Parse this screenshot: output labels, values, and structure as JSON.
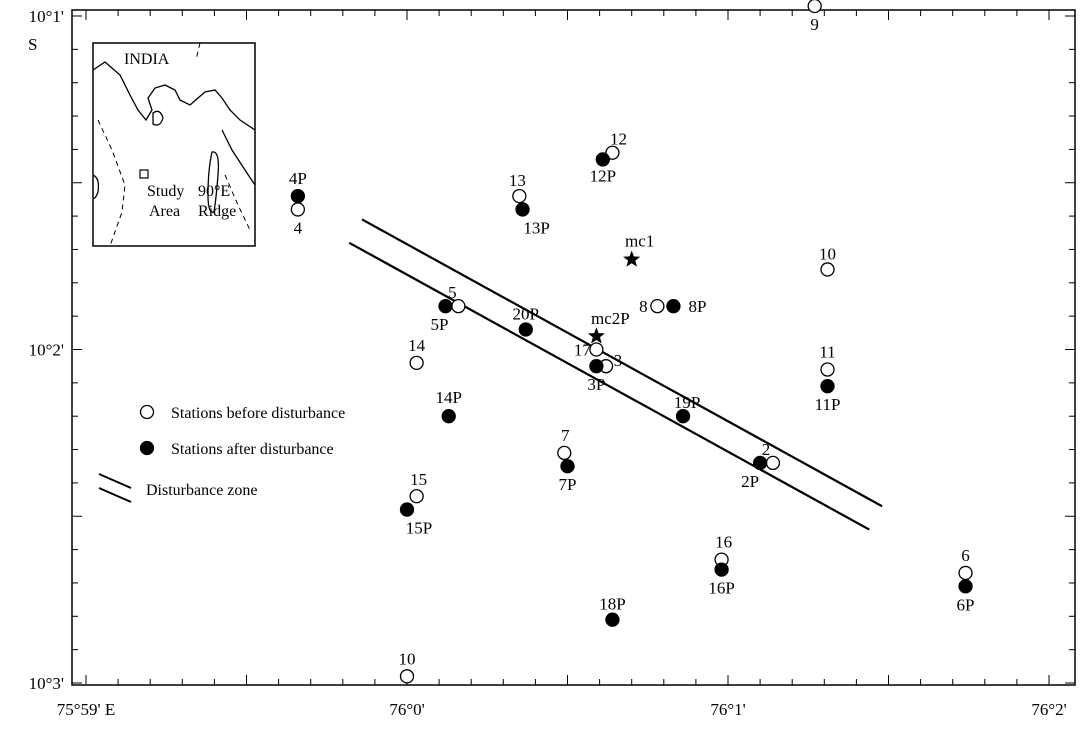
{
  "axes": {
    "x_ticks": [
      {
        "value": -1,
        "label": "75°59' E"
      },
      {
        "value": 0,
        "label": "76°0'"
      },
      {
        "value": 1,
        "label": "76°1'"
      },
      {
        "value": 2,
        "label": "76°2'"
      }
    ],
    "y_ticks": [
      {
        "value": 1,
        "label": "10°1'"
      },
      {
        "value": 2,
        "label": "10°2'"
      },
      {
        "value": 3,
        "label": "10°3'"
      }
    ],
    "y_hemisphere": "S",
    "x_range_minutes": [
      -1.1,
      2.1
    ],
    "y_range_minutes": [
      0.93,
      3.0
    ]
  },
  "inset": {
    "country_label": "INDIA",
    "study_area_label_1": "Study",
    "study_area_label_2": "Area",
    "ridge_label_1": "90°E",
    "ridge_label_2": "Ridge"
  },
  "legend": {
    "before_label": "Stations before disturbance",
    "after_label": "Stations after disturbance",
    "zone_label": "Disturbance zone"
  },
  "stations_before": [
    {
      "label": "9",
      "lon": 1.27,
      "lat": 0.97
    },
    {
      "label": "12",
      "lon": 0.64,
      "lat": 1.41
    },
    {
      "label": "13",
      "lon": 0.35,
      "lat": 1.54
    },
    {
      "label": "4",
      "lon": -0.34,
      "lat": 1.58
    },
    {
      "label": "10",
      "lon": 1.31,
      "lat": 1.76
    },
    {
      "label": "5",
      "lon": 0.16,
      "lat": 1.87
    },
    {
      "label": "8",
      "lon": 0.78,
      "lat": 1.87
    },
    {
      "label": "17",
      "lon": 0.59,
      "lat": 2.0
    },
    {
      "label": "3",
      "lon": 0.62,
      "lat": 2.05
    },
    {
      "label": "14",
      "lon": 0.03,
      "lat": 2.04
    },
    {
      "label": "11",
      "lon": 1.31,
      "lat": 2.06
    },
    {
      "label": "7",
      "lon": 0.49,
      "lat": 2.31
    },
    {
      "label": "2",
      "lon": 1.14,
      "lat": 2.34
    },
    {
      "label": "15",
      "lon": 0.03,
      "lat": 2.44
    },
    {
      "label": "16",
      "lon": 0.98,
      "lat": 2.63
    },
    {
      "label": "6",
      "lon": 1.74,
      "lat": 2.67
    },
    {
      "label": "10",
      "lon": 0.0,
      "lat": 2.98
    }
  ],
  "stations_after": [
    {
      "label": "12P",
      "lon": 0.61,
      "lat": 1.43
    },
    {
      "label": "4P",
      "lon": -0.34,
      "lat": 1.54
    },
    {
      "label": "13P",
      "lon": 0.36,
      "lat": 1.58
    },
    {
      "label": "5P",
      "lon": 0.12,
      "lat": 1.87
    },
    {
      "label": "8P",
      "lon": 0.83,
      "lat": 1.87
    },
    {
      "label": "20P",
      "lon": 0.37,
      "lat": 1.94
    },
    {
      "label": "3P",
      "lon": 0.59,
      "lat": 2.05
    },
    {
      "label": "11P",
      "lon": 1.31,
      "lat": 2.11
    },
    {
      "label": "14P",
      "lon": 0.13,
      "lat": 2.2
    },
    {
      "label": "19P",
      "lon": 0.86,
      "lat": 2.2
    },
    {
      "label": "7P",
      "lon": 0.5,
      "lat": 2.35
    },
    {
      "label": "2P",
      "lon": 1.1,
      "lat": 2.34
    },
    {
      "label": "15P",
      "lon": 0.0,
      "lat": 2.48
    },
    {
      "label": "16P",
      "lon": 0.98,
      "lat": 2.66
    },
    {
      "label": "6P",
      "lon": 1.74,
      "lat": 2.71
    },
    {
      "label": "18P",
      "lon": 0.64,
      "lat": 2.81
    }
  ],
  "mass_centers": [
    {
      "label": "mc1",
      "lon": 0.7,
      "lat": 1.73
    },
    {
      "label": "mc2P",
      "lon": 0.59,
      "lat": 1.96
    }
  ],
  "disturbance_zone": {
    "line1": [
      [
        -0.14,
        1.61
      ],
      [
        1.48,
        2.47
      ]
    ],
    "line2": [
      [
        -0.18,
        1.68
      ],
      [
        1.44,
        2.54
      ]
    ]
  }
}
